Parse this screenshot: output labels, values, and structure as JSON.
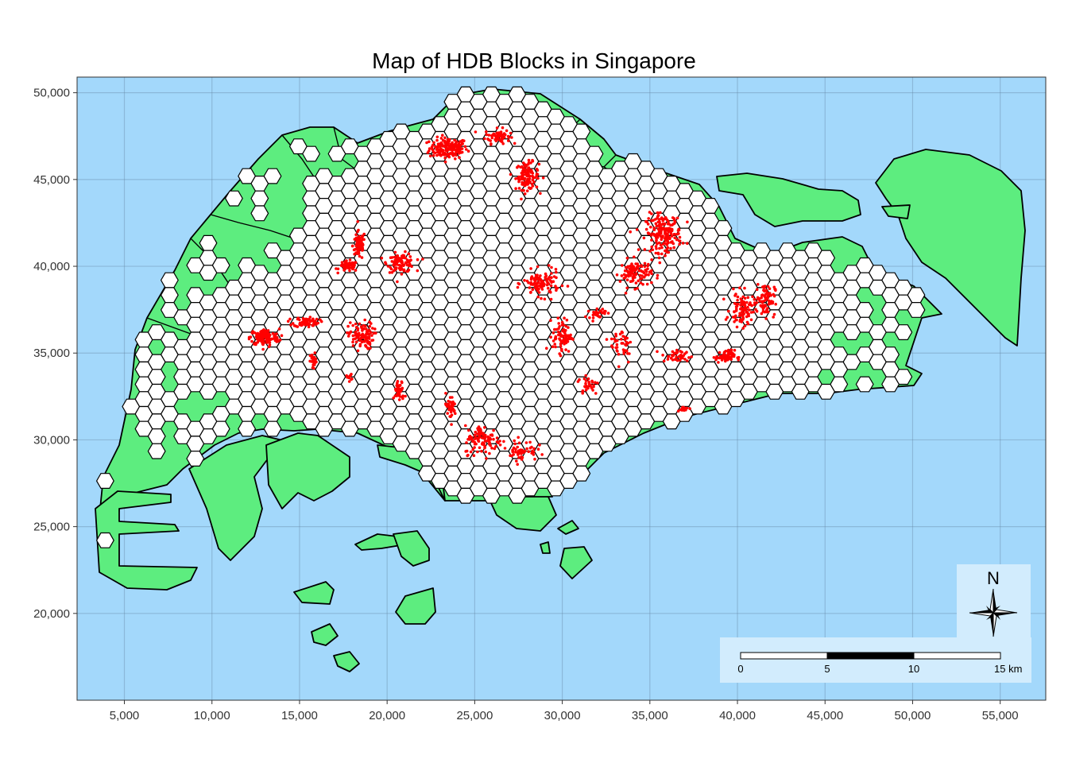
{
  "title": "Map of HDB Blocks in Singapore",
  "colors": {
    "sea": "#a3d8fb",
    "land": "#5ded7f",
    "land_border": "#000000",
    "hex_fill": "#ffffff",
    "hex_border": "#000000",
    "hdb_points": "#ff0000",
    "grid": "#5f7f9a",
    "legend_bg": "#d2ecfd"
  },
  "chart_data": {
    "type": "map",
    "title": "Map of HDB Blocks in Singapore",
    "xlabel": "",
    "ylabel": "",
    "x_range": [
      2300,
      57600
    ],
    "y_range": [
      15000,
      50900
    ],
    "x_ticks": [
      {
        "value": 5000,
        "label": "5,000"
      },
      {
        "value": 10000,
        "label": "10,000"
      },
      {
        "value": 15000,
        "label": "15,000"
      },
      {
        "value": 20000,
        "label": "20,000"
      },
      {
        "value": 25000,
        "label": "25,000"
      },
      {
        "value": 30000,
        "label": "30,000"
      },
      {
        "value": 35000,
        "label": "35,000"
      },
      {
        "value": 40000,
        "label": "40,000"
      },
      {
        "value": 45000,
        "label": "45,000"
      },
      {
        "value": 50000,
        "label": "50,000"
      },
      {
        "value": 55000,
        "label": "55,000"
      }
    ],
    "y_ticks": [
      {
        "value": 20000,
        "label": "20,000"
      },
      {
        "value": 25000,
        "label": "25,000"
      },
      {
        "value": 30000,
        "label": "30,000"
      },
      {
        "value": 35000,
        "label": "35,000"
      },
      {
        "value": 40000,
        "label": "40,000"
      },
      {
        "value": 45000,
        "label": "45,000"
      },
      {
        "value": 50000,
        "label": "50,000"
      }
    ],
    "grid": true,
    "layers": [
      "planning subzones (green polygons)",
      "hexagonal grid cells (white)",
      "HDB blocks (red points)"
    ],
    "hdb_clusters": [
      {
        "x": 23500,
        "y": 46800,
        "n": 160,
        "sx": 900,
        "sy": 500
      },
      {
        "x": 26300,
        "y": 47500,
        "n": 60,
        "sx": 600,
        "sy": 350
      },
      {
        "x": 28000,
        "y": 45200,
        "n": 110,
        "sx": 550,
        "sy": 650
      },
      {
        "x": 18400,
        "y": 41200,
        "n": 70,
        "sx": 300,
        "sy": 700
      },
      {
        "x": 17800,
        "y": 40000,
        "n": 50,
        "sx": 450,
        "sy": 250
      },
      {
        "x": 20800,
        "y": 40200,
        "n": 100,
        "sx": 650,
        "sy": 450
      },
      {
        "x": 13000,
        "y": 35900,
        "n": 130,
        "sx": 700,
        "sy": 400
      },
      {
        "x": 15400,
        "y": 36800,
        "n": 70,
        "sx": 600,
        "sy": 250
      },
      {
        "x": 18500,
        "y": 36000,
        "n": 100,
        "sx": 600,
        "sy": 650
      },
      {
        "x": 15800,
        "y": 34500,
        "n": 25,
        "sx": 150,
        "sy": 400
      },
      {
        "x": 20700,
        "y": 32800,
        "n": 45,
        "sx": 250,
        "sy": 500
      },
      {
        "x": 17800,
        "y": 33600,
        "n": 10,
        "sx": 150,
        "sy": 150
      },
      {
        "x": 35800,
        "y": 41900,
        "n": 190,
        "sx": 850,
        "sy": 900
      },
      {
        "x": 34200,
        "y": 39600,
        "n": 100,
        "sx": 750,
        "sy": 650
      },
      {
        "x": 28800,
        "y": 39000,
        "n": 110,
        "sx": 850,
        "sy": 600
      },
      {
        "x": 40300,
        "y": 37500,
        "n": 90,
        "sx": 600,
        "sy": 800
      },
      {
        "x": 41600,
        "y": 38100,
        "n": 80,
        "sx": 450,
        "sy": 800
      },
      {
        "x": 39300,
        "y": 34800,
        "n": 60,
        "sx": 450,
        "sy": 300
      },
      {
        "x": 36500,
        "y": 34800,
        "n": 40,
        "sx": 700,
        "sy": 300
      },
      {
        "x": 30000,
        "y": 36000,
        "n": 80,
        "sx": 450,
        "sy": 800
      },
      {
        "x": 33400,
        "y": 35500,
        "n": 40,
        "sx": 550,
        "sy": 900
      },
      {
        "x": 31500,
        "y": 33200,
        "n": 30,
        "sx": 500,
        "sy": 500
      },
      {
        "x": 25500,
        "y": 30000,
        "n": 100,
        "sx": 900,
        "sy": 700
      },
      {
        "x": 27700,
        "y": 29400,
        "n": 50,
        "sx": 700,
        "sy": 500
      },
      {
        "x": 23600,
        "y": 31900,
        "n": 35,
        "sx": 300,
        "sy": 600
      },
      {
        "x": 36900,
        "y": 31800,
        "n": 15,
        "sx": 300,
        "sy": 100
      },
      {
        "x": 32000,
        "y": 37300,
        "n": 30,
        "sx": 400,
        "sy": 250
      }
    ]
  },
  "scale_bar": {
    "labels": [
      "0",
      "5",
      "10",
      "15 km"
    ],
    "km_values": [
      0,
      5,
      10,
      15
    ]
  },
  "north_arrow": {
    "label": "N"
  }
}
